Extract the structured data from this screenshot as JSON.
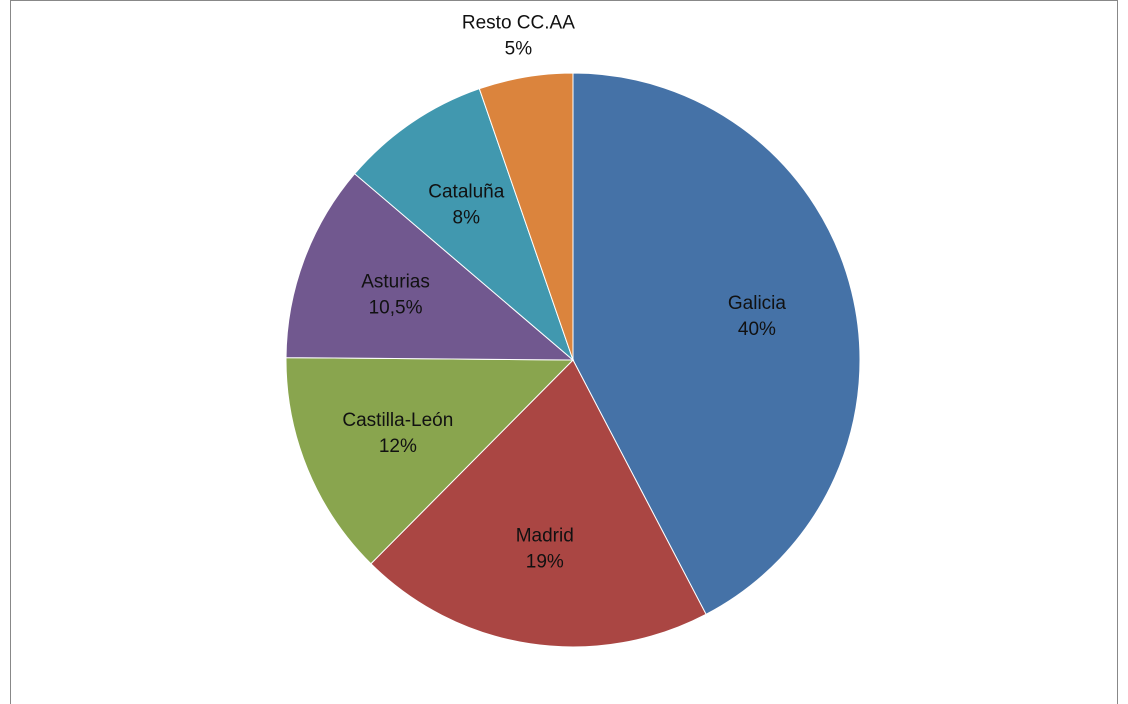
{
  "chart_data": {
    "type": "pie",
    "categories": [
      "Galicia",
      "Madrid",
      "Castilla-León",
      "Asturias",
      "Cataluña",
      "Resto CC.AA"
    ],
    "values": [
      40,
      19,
      12,
      10.5,
      8,
      5
    ],
    "value_labels": [
      "40%",
      "19%",
      "12%",
      "10,5%",
      "8%",
      "5%"
    ],
    "colors": [
      "#4572a7",
      "#aa4643",
      "#89a54e",
      "#71588f",
      "#4198af",
      "#db843d"
    ]
  }
}
